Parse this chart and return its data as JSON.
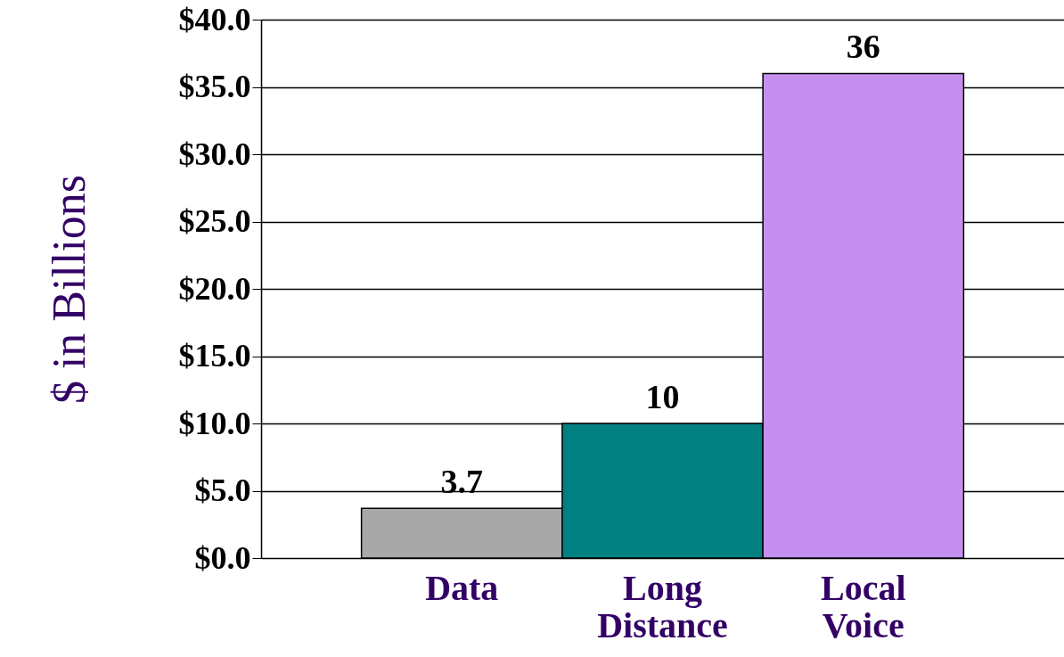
{
  "chart_data": {
    "type": "bar",
    "ylabel": "$ in Billions",
    "categories": [
      "Data",
      "Long Distance",
      "Local Voice"
    ],
    "values": [
      3.7,
      10,
      36
    ],
    "colors": [
      "#a8a8a8",
      "#008080",
      "#c58ff0"
    ],
    "ylim": [
      0,
      40
    ],
    "yticks": [
      {
        "value": 0,
        "label": "$0.0"
      },
      {
        "value": 5,
        "label": "$5.0"
      },
      {
        "value": 10,
        "label": "$10.0"
      },
      {
        "value": 15,
        "label": "$15.0"
      },
      {
        "value": 20,
        "label": "$20.0"
      },
      {
        "value": 25,
        "label": "$25.0"
      },
      {
        "value": 30,
        "label": "$30.0"
      },
      {
        "value": 35,
        "label": "$35.0"
      },
      {
        "value": 40,
        "label": "$40.0"
      }
    ],
    "grid": "y",
    "data_labels": true
  }
}
